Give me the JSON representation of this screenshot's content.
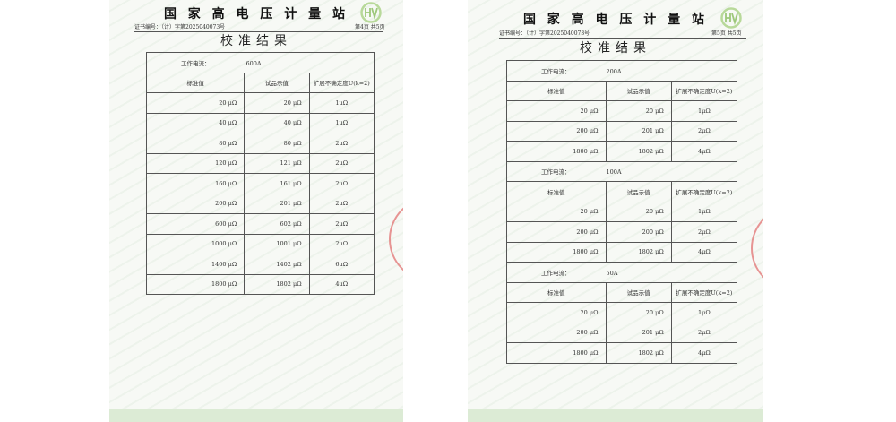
{
  "pages": [
    {
      "org": "国 家 高 电 压 计 量 站",
      "cert_no": "证书编号：（计）字第2025040073号",
      "page_no": "第4页 共5页",
      "logo": "HV",
      "title": "校准结果",
      "sections": [
        {
          "current_label": "工作电流：",
          "current": "600A",
          "headers": [
            "标准值",
            "试品示值",
            "扩展不确定度U(k=2)"
          ],
          "rows": [
            [
              "20 μΩ",
              "20 μΩ",
              "1μΩ"
            ],
            [
              "40 μΩ",
              "40 μΩ",
              "1μΩ"
            ],
            [
              "80 μΩ",
              "80 μΩ",
              "2μΩ"
            ],
            [
              "120 μΩ",
              "121 μΩ",
              "2μΩ"
            ],
            [
              "160 μΩ",
              "161 μΩ",
              "2μΩ"
            ],
            [
              "200 μΩ",
              "201 μΩ",
              "2μΩ"
            ],
            [
              "600 μΩ",
              "602 μΩ",
              "2μΩ"
            ],
            [
              "1000 μΩ",
              "1001 μΩ",
              "2μΩ"
            ],
            [
              "1400 μΩ",
              "1402 μΩ",
              "6μΩ"
            ],
            [
              "1800 μΩ",
              "1802 μΩ",
              "4μΩ"
            ]
          ]
        }
      ]
    },
    {
      "org": "国 家 高 电 压 计 量 站",
      "cert_no": "证书编号：（计）字第2025040073号",
      "page_no": "第5页 共5页",
      "logo": "HV",
      "title": "校准结果",
      "sections": [
        {
          "current_label": "工作电流：",
          "current": "200A",
          "headers": [
            "标准值",
            "试品示值",
            "扩展不确定度U(k=2)"
          ],
          "rows": [
            [
              "20 μΩ",
              "20 μΩ",
              "1μΩ"
            ],
            [
              "200 μΩ",
              "201 μΩ",
              "2μΩ"
            ],
            [
              "1800 μΩ",
              "1802 μΩ",
              "4μΩ"
            ]
          ]
        },
        {
          "current_label": "工作电流：",
          "current": "100A",
          "headers": [
            "标准值",
            "试品示值",
            "扩展不确定度U(k=2)"
          ],
          "rows": [
            [
              "20 μΩ",
              "20 μΩ",
              "1μΩ"
            ],
            [
              "200 μΩ",
              "200 μΩ",
              "2μΩ"
            ],
            [
              "1800 μΩ",
              "1802 μΩ",
              "4μΩ"
            ]
          ]
        },
        {
          "current_label": "工作电流：",
          "current": "50A",
          "headers": [
            "标准值",
            "试品示值",
            "扩展不确定度U(k=2)"
          ],
          "rows": [
            [
              "20 μΩ",
              "20 μΩ",
              "1μΩ"
            ],
            [
              "200 μΩ",
              "201 μΩ",
              "2μΩ"
            ],
            [
              "1800 μΩ",
              "1802 μΩ",
              "4μΩ"
            ]
          ]
        }
      ]
    }
  ]
}
